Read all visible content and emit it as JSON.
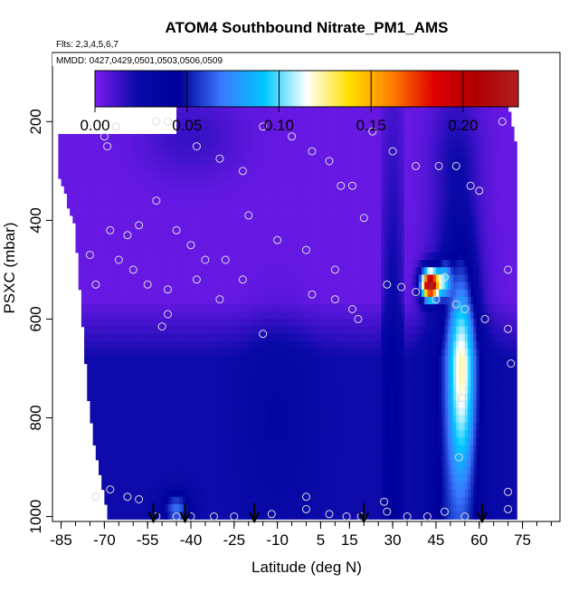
{
  "chart_data": {
    "type": "heatmap",
    "title": "ATOM4 Southbound Nitrate_PM1_AMS",
    "subtitle_flights": "Flts: 2,3,4,5,6,7",
    "subtitle_dates": "MMDD: 0427,0429,0501,0503,0506,0509",
    "xlabel": "Latitude (deg N)",
    "ylabel": "PSXC (mbar)",
    "xlim": [
      -88,
      88
    ],
    "ylim": [
      1010,
      60
    ],
    "x_ticks": [
      -85,
      -70,
      -55,
      -40,
      -25,
      -10,
      5,
      15,
      30,
      45,
      60,
      75
    ],
    "y_ticks": [
      200,
      400,
      600,
      800,
      1000
    ],
    "colorbar": {
      "range": [
        0,
        0.23
      ],
      "ticks": [
        0.0,
        0.05,
        0.1,
        0.15,
        0.2
      ],
      "tick_labels": [
        "0.00",
        "0.05",
        "0.10",
        "0.15",
        "0.20"
      ],
      "colors": [
        "#7a1cf0",
        "#0a0aa8",
        "#00009a",
        "#3a7aff",
        "#00c8ff",
        "#ffffff",
        "#ffe000",
        "#ff8000",
        "#e00000",
        "#b00000",
        "#b02020"
      ]
    },
    "coverage": {
      "lat_range": [
        -86,
        73
      ],
      "pres_top_by_lat": [
        [
          -86,
          220
        ],
        [
          -45,
          220
        ],
        [
          -45,
          170
        ],
        [
          70,
          170
        ],
        [
          73,
          250
        ]
      ],
      "pres_bottom_by_lat": [
        [
          -86,
          300
        ],
        [
          -80,
          420
        ],
        [
          -75,
          800
        ],
        [
          -70,
          960
        ],
        [
          -69,
          1000
        ],
        [
          73,
          1000
        ]
      ]
    },
    "aircraft_profiles_lat": [
      -53,
      -42,
      -18,
      20,
      61
    ],
    "sample_points": [
      {
        "lat": -70,
        "pres": 230
      },
      {
        "lat": -69,
        "pres": 250
      },
      {
        "lat": -66,
        "pres": 210
      },
      {
        "lat": -52,
        "pres": 200
      },
      {
        "lat": -48,
        "pres": 200
      },
      {
        "lat": -38,
        "pres": 250
      },
      {
        "lat": -30,
        "pres": 275
      },
      {
        "lat": -22,
        "pres": 300
      },
      {
        "lat": -15,
        "pres": 210
      },
      {
        "lat": -5,
        "pres": 230
      },
      {
        "lat": 2,
        "pres": 260
      },
      {
        "lat": 8,
        "pres": 280
      },
      {
        "lat": 12,
        "pres": 330
      },
      {
        "lat": 16,
        "pres": 330
      },
      {
        "lat": 23,
        "pres": 220
      },
      {
        "lat": 30,
        "pres": 260
      },
      {
        "lat": 38,
        "pres": 290
      },
      {
        "lat": 46,
        "pres": 290
      },
      {
        "lat": 52,
        "pres": 290
      },
      {
        "lat": 57,
        "pres": 330
      },
      {
        "lat": 60,
        "pres": 340
      },
      {
        "lat": 68,
        "pres": 200
      },
      {
        "lat": -75,
        "pres": 470
      },
      {
        "lat": -68,
        "pres": 420
      },
      {
        "lat": -62,
        "pres": 430
      },
      {
        "lat": -58,
        "pres": 410
      },
      {
        "lat": -52,
        "pres": 360
      },
      {
        "lat": -45,
        "pres": 420
      },
      {
        "lat": -40,
        "pres": 450
      },
      {
        "lat": -35,
        "pres": 480
      },
      {
        "lat": -28,
        "pres": 480
      },
      {
        "lat": -20,
        "pres": 390
      },
      {
        "lat": -10,
        "pres": 440
      },
      {
        "lat": 0,
        "pres": 460
      },
      {
        "lat": 10,
        "pres": 500
      },
      {
        "lat": 20,
        "pres": 395
      },
      {
        "lat": -73,
        "pres": 530
      },
      {
        "lat": -65,
        "pres": 480
      },
      {
        "lat": -60,
        "pres": 500
      },
      {
        "lat": -55,
        "pres": 530
      },
      {
        "lat": -48,
        "pres": 540
      },
      {
        "lat": -38,
        "pres": 520
      },
      {
        "lat": -30,
        "pres": 560
      },
      {
        "lat": -22,
        "pres": 520
      },
      {
        "lat": -15,
        "pres": 630
      },
      {
        "lat": 2,
        "pres": 550
      },
      {
        "lat": 10,
        "pres": 560
      },
      {
        "lat": 16,
        "pres": 580
      },
      {
        "lat": 18,
        "pres": 600
      },
      {
        "lat": 28,
        "pres": 530
      },
      {
        "lat": 33,
        "pres": 535
      },
      {
        "lat": 38,
        "pres": 545
      },
      {
        "lat": 45,
        "pres": 560
      },
      {
        "lat": 48,
        "pres": 515
      },
      {
        "lat": 52,
        "pres": 570
      },
      {
        "lat": 55,
        "pres": 580
      },
      {
        "lat": 62,
        "pres": 600
      },
      {
        "lat": 70,
        "pres": 620
      },
      {
        "lat": 71,
        "pres": 690
      },
      {
        "lat": 70,
        "pres": 500
      },
      {
        "lat": 54,
        "pres": 760
      },
      {
        "lat": 53,
        "pres": 880
      },
      {
        "lat": -50,
        "pres": 615
      },
      {
        "lat": -48,
        "pres": 590
      },
      {
        "lat": -73,
        "pres": 960
      },
      {
        "lat": -68,
        "pres": 945
      },
      {
        "lat": -62,
        "pres": 960
      },
      {
        "lat": -58,
        "pres": 965
      },
      {
        "lat": -52,
        "pres": 1000
      },
      {
        "lat": -45,
        "pres": 1000
      },
      {
        "lat": -40,
        "pres": 1000
      },
      {
        "lat": -32,
        "pres": 1000
      },
      {
        "lat": -25,
        "pres": 1000
      },
      {
        "lat": -12,
        "pres": 995
      },
      {
        "lat": 0,
        "pres": 960
      },
      {
        "lat": 0,
        "pres": 985
      },
      {
        "lat": 8,
        "pres": 995
      },
      {
        "lat": 14,
        "pres": 1000
      },
      {
        "lat": 19,
        "pres": 1000
      },
      {
        "lat": 27,
        "pres": 970
      },
      {
        "lat": 28,
        "pres": 990
      },
      {
        "lat": 35,
        "pres": 1000
      },
      {
        "lat": 42,
        "pres": 1000
      },
      {
        "lat": 48,
        "pres": 990
      },
      {
        "lat": 55,
        "pres": 1000
      },
      {
        "lat": 70,
        "pres": 950
      },
      {
        "lat": 70,
        "pres": 985
      }
    ],
    "grid": false,
    "legend": "colorbar top inside plot"
  }
}
